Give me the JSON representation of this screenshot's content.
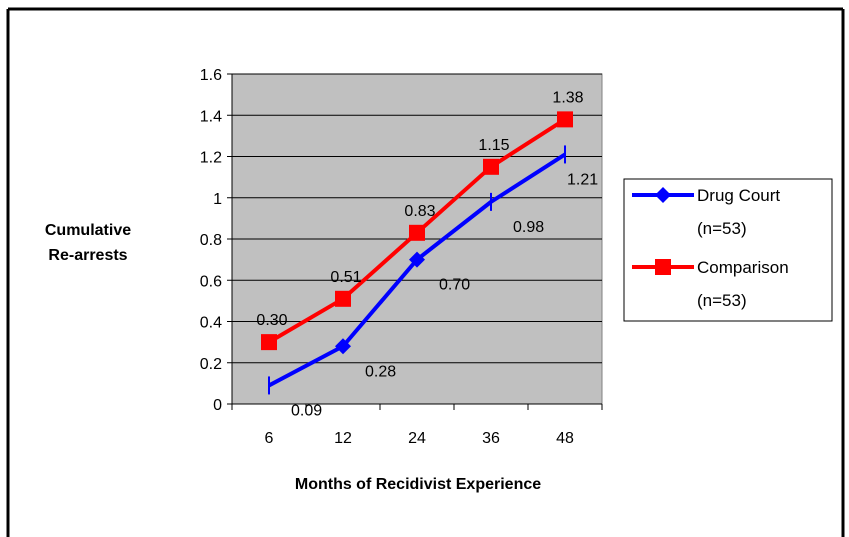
{
  "chart_data": {
    "type": "line",
    "categories": [
      "6",
      "12",
      "24",
      "36",
      "48"
    ],
    "series": [
      {
        "name": "Drug Court",
        "name_line2": "(n=53)",
        "values": [
          0.09,
          0.28,
          0.7,
          0.98,
          1.21
        ],
        "labels": [
          "0.09",
          "0.28",
          "0.70",
          "0.98",
          "1.21"
        ],
        "color": "#0000ff",
        "marker": "diamond"
      },
      {
        "name": "Comparison",
        "name_line2": "(n=53)",
        "values": [
          0.3,
          0.51,
          0.83,
          1.15,
          1.38
        ],
        "labels": [
          "0.30",
          "0.51",
          "0.83",
          "1.15",
          "1.38"
        ],
        "color": "#ff0000",
        "marker": "square"
      }
    ],
    "xlabel": "Months of Recidivist Experience",
    "ylabel_line1": "Cumulative",
    "ylabel_line2": "Re-arrests",
    "ylim": [
      0,
      1.6
    ],
    "yticks": [
      "0",
      "0.2",
      "0.4",
      "0.6",
      "0.8",
      "1",
      "1.2",
      "1.4",
      "1.6"
    ],
    "grid": true,
    "plot_background": "#c0c0c0",
    "legend_position": "right"
  }
}
